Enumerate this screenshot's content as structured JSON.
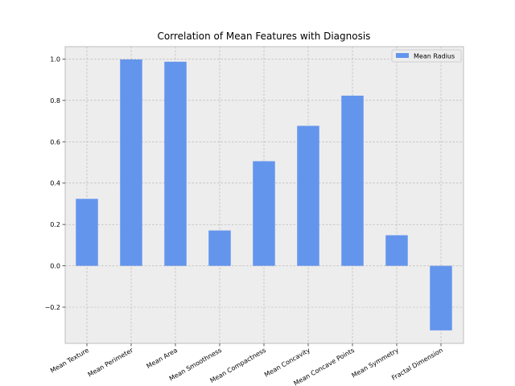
{
  "chart_data": {
    "type": "bar",
    "title": "Correlation of Mean Features with Diagnosis",
    "xlabel": "",
    "ylabel": "",
    "categories": [
      "Mean Texture",
      "Mean Perimeter",
      "Mean Area",
      "Mean Smoothness",
      "Mean Compactness",
      "Mean Concavity",
      "Mean Concave Points",
      "Mean Symmetry",
      "Fractal Dimension"
    ],
    "series": [
      {
        "name": "Mean Radius",
        "values": [
          0.324,
          0.998,
          0.987,
          0.171,
          0.506,
          0.677,
          0.823,
          0.148,
          -0.312
        ],
        "color": "#6495ED"
      }
    ],
    "ylim": [
      -0.375,
      1.06
    ],
    "yticks": [
      -0.2,
      0.0,
      0.2,
      0.4,
      0.6,
      0.8,
      1.0
    ],
    "ytick_labels": [
      "−0.2",
      "0.0",
      "0.2",
      "0.4",
      "0.6",
      "0.8",
      "1.0"
    ],
    "grid": true,
    "legend_position": "top-right",
    "plot_background": "#EDEDED"
  }
}
